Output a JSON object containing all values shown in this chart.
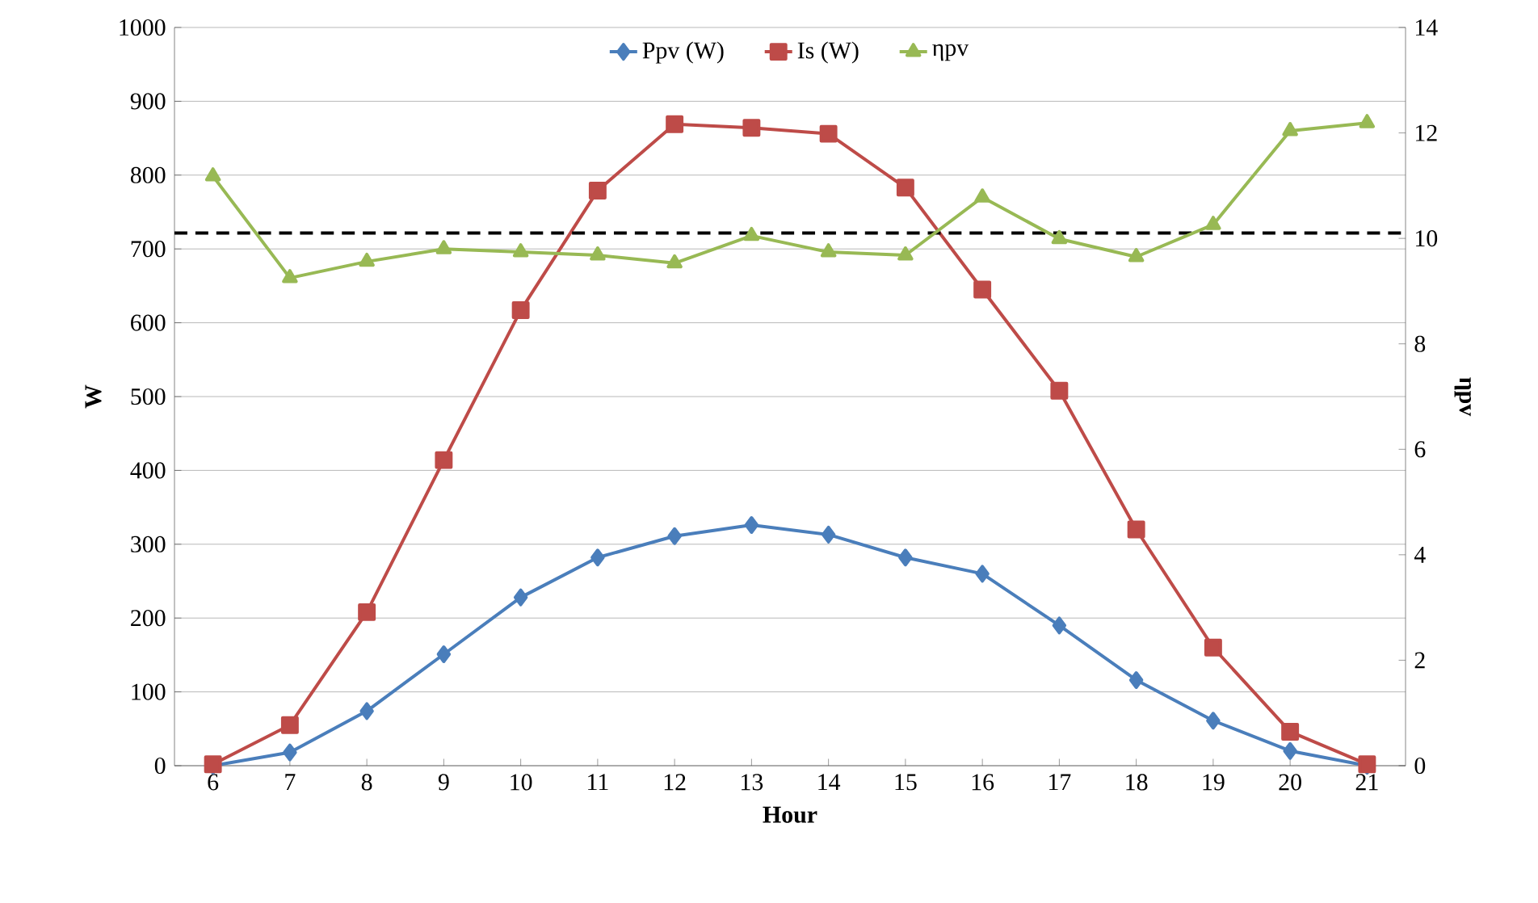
{
  "chart_data": {
    "type": "line",
    "xlabel": "Hour",
    "ylabel": "W",
    "y2label": "ηpv",
    "categories": [
      "6",
      "7",
      "8",
      "9",
      "10",
      "11",
      "12",
      "13",
      "14",
      "15",
      "16",
      "17",
      "18",
      "19",
      "20",
      "21"
    ],
    "ylim": [
      0,
      1000
    ],
    "yticks": [
      0,
      100,
      200,
      300,
      400,
      500,
      600,
      700,
      800,
      900,
      1000
    ],
    "y2lim": [
      0,
      14
    ],
    "y2ticks": [
      0,
      2,
      4,
      6,
      8,
      10,
      12,
      14
    ],
    "grid": "y",
    "legend": "top",
    "line_style": "solid",
    "series": [
      {
        "name": "Ppv (W)",
        "color": "#4a7ebb",
        "marker": "diamond",
        "values": [
          0,
          18,
          74,
          151,
          228,
          282,
          311,
          326,
          313,
          282,
          260,
          190,
          116,
          61,
          20,
          0
        ]
      },
      {
        "name": "Is (W)",
        "color": "#be4b48",
        "marker": "square",
        "values": [
          2,
          55,
          208,
          414,
          617,
          779,
          869,
          864,
          856,
          783,
          645,
          508,
          320,
          160,
          46,
          2
        ]
      },
      {
        "name": "ηpv",
        "color": "#98b954",
        "marker": "triangle",
        "axis": "y2",
        "values": [
          11.18,
          9.25,
          9.56,
          9.8,
          9.74,
          9.68,
          9.53,
          10.05,
          9.74,
          9.68,
          10.78,
          9.99,
          9.65,
          10.26,
          12.04,
          12.19
        ]
      }
    ],
    "ref_lines": [
      {
        "axis": "y2",
        "value": 10.1,
        "color": "#000000",
        "line_style": "dashed"
      }
    ]
  }
}
